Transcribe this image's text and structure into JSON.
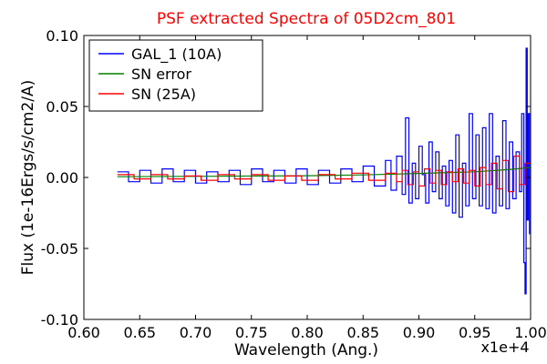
{
  "chart_data": {
    "type": "line",
    "title": "PSF extracted Spectra of 05D2cm_801",
    "title_color": "#ff0000",
    "xlabel": "Wavelength (Ang.)",
    "ylabel": "Flux (1e-16Ergs/s/cm2/A)",
    "x_multiplier_label": "x1e+4",
    "xlim": [
      0.6,
      1.0
    ],
    "ylim": [
      -0.1,
      0.1
    ],
    "xticks": [
      0.6,
      0.65,
      0.7,
      0.75,
      0.8,
      0.85,
      0.9,
      0.95,
      1.0
    ],
    "yticks": [
      -0.1,
      -0.05,
      0.0,
      0.05,
      0.1
    ],
    "xtick_labels": [
      "0.60",
      "0.65",
      "0.70",
      "0.75",
      "0.80",
      "0.85",
      "0.90",
      "0.95",
      "1.00"
    ],
    "ytick_labels": [
      "-0.10",
      "-0.05",
      "0.00",
      "0.05",
      "0.10"
    ],
    "grid": false,
    "legend_position": "top-left",
    "series": [
      {
        "name": "GAL_1 (10A)",
        "color": "#0000ff",
        "step": true,
        "x": [
          0.63,
          0.64,
          0.65,
          0.66,
          0.67,
          0.68,
          0.69,
          0.7,
          0.71,
          0.72,
          0.73,
          0.74,
          0.75,
          0.76,
          0.77,
          0.78,
          0.79,
          0.8,
          0.81,
          0.82,
          0.83,
          0.84,
          0.85,
          0.86,
          0.87,
          0.875,
          0.88,
          0.885,
          0.888,
          0.891,
          0.894,
          0.897,
          0.9,
          0.903,
          0.906,
          0.909,
          0.912,
          0.915,
          0.918,
          0.921,
          0.924,
          0.927,
          0.93,
          0.933,
          0.936,
          0.939,
          0.942,
          0.945,
          0.948,
          0.951,
          0.954,
          0.957,
          0.96,
          0.963,
          0.966,
          0.969,
          0.972,
          0.975,
          0.978,
          0.981,
          0.984,
          0.987,
          0.99,
          0.992,
          0.994,
          0.995,
          0.996,
          0.997,
          0.998,
          0.999
        ],
        "y": [
          0.004,
          -0.003,
          0.005,
          -0.004,
          0.006,
          -0.003,
          0.005,
          -0.004,
          0.004,
          -0.003,
          0.005,
          -0.005,
          0.006,
          -0.003,
          0.005,
          -0.004,
          0.006,
          -0.005,
          0.005,
          -0.004,
          0.006,
          -0.003,
          0.008,
          -0.006,
          0.012,
          -0.009,
          0.015,
          -0.012,
          0.042,
          -0.018,
          0.01,
          -0.015,
          0.022,
          0.002,
          -0.018,
          0.025,
          -0.01,
          0.018,
          -0.015,
          0.008,
          -0.02,
          0.012,
          -0.025,
          0.03,
          -0.028,
          0.01,
          -0.02,
          0.045,
          -0.015,
          0.03,
          -0.02,
          0.035,
          -0.022,
          0.045,
          -0.025,
          0.015,
          -0.02,
          0.04,
          -0.022,
          0.025,
          -0.015,
          0.018,
          -0.01,
          0.045,
          -0.06,
          -0.082,
          0.091,
          -0.03,
          0.045,
          -0.04
        ]
      },
      {
        "name": "SN error",
        "color": "#008000",
        "step": false,
        "x": [
          0.63,
          0.7,
          0.8,
          0.85,
          0.9,
          0.95,
          0.98,
          1.0
        ],
        "y": [
          0.0005,
          0.0008,
          0.0012,
          0.0018,
          0.0028,
          0.004,
          0.0055,
          0.007
        ]
      },
      {
        "name": "SN (25A)",
        "color": "#ff0000",
        "step": true,
        "x": [
          0.63,
          0.645,
          0.66,
          0.675,
          0.69,
          0.705,
          0.72,
          0.735,
          0.75,
          0.765,
          0.78,
          0.795,
          0.81,
          0.825,
          0.84,
          0.855,
          0.87,
          0.88,
          0.885,
          0.89,
          0.895,
          0.9,
          0.905,
          0.91,
          0.915,
          0.92,
          0.925,
          0.93,
          0.935,
          0.94,
          0.945,
          0.95,
          0.955,
          0.96,
          0.965,
          0.97,
          0.975,
          0.98,
          0.985,
          0.99,
          0.995,
          1.0
        ],
        "y": [
          0.002,
          -0.001,
          0.002,
          -0.001,
          0.001,
          -0.002,
          0.002,
          -0.001,
          0.002,
          -0.002,
          0.001,
          -0.002,
          0.002,
          -0.001,
          0.003,
          -0.002,
          0.003,
          -0.003,
          0.005,
          -0.005,
          0.004,
          -0.006,
          0.006,
          -0.004,
          0.005,
          -0.005,
          0.004,
          -0.003,
          0.006,
          -0.004,
          0.005,
          -0.006,
          0.007,
          -0.005,
          0.01,
          -0.008,
          0.012,
          -0.01,
          0.015,
          -0.005,
          0.01,
          0.005
        ]
      }
    ]
  }
}
